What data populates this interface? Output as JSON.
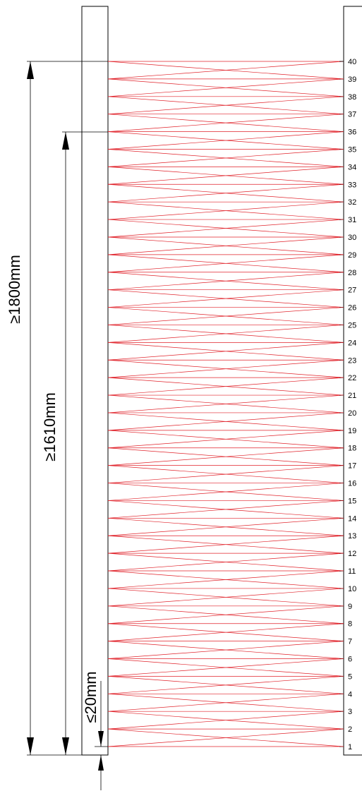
{
  "diagram": {
    "beam_count": 40,
    "beam_numbers": [
      "1",
      "2",
      "3",
      "4",
      "5",
      "6",
      "7",
      "8",
      "9",
      "10",
      "11",
      "12",
      "13",
      "14",
      "15",
      "16",
      "17",
      "18",
      "19",
      "20",
      "21",
      "22",
      "23",
      "24",
      "25",
      "26",
      "27",
      "28",
      "29",
      "30",
      "31",
      "32",
      "33",
      "34",
      "35",
      "36",
      "37",
      "38",
      "39",
      "40"
    ],
    "dimensions": {
      "overall_height": "≥1800mm",
      "protected_height": "≥1610mm",
      "bottom_offset": "≤20mm"
    },
    "colors": {
      "beam": "#e0222a",
      "line": "#000000",
      "background": "#ffffff"
    }
  }
}
